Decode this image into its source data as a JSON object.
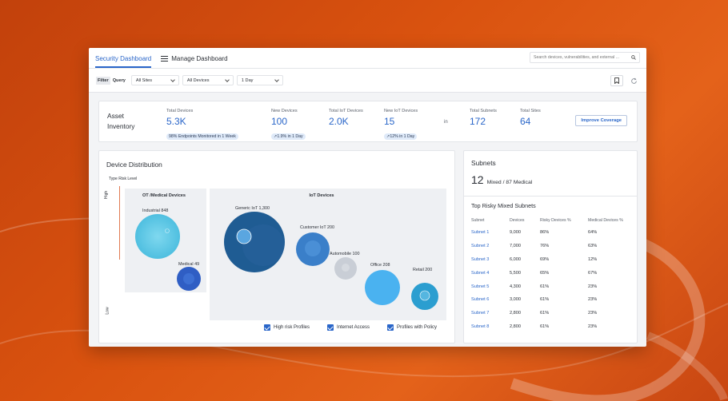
{
  "colors": {
    "accent": "#2a66c9",
    "background": "#d9520f"
  },
  "header": {
    "tabs": [
      {
        "label": "Security Dashboard",
        "active": true
      },
      {
        "label": "Manage Dashboard",
        "icon": "menu-icon"
      }
    ],
    "search_placeholder": "Search devices, vulnerabilities, and external ..."
  },
  "filterbar": {
    "filter_label": "Filter",
    "query_label": "Query",
    "sites": "All Sites",
    "devices": "All Devices",
    "period": "1 Day"
  },
  "inventory": {
    "title": "Asset Inventory",
    "stats": [
      {
        "label": "Total Devices",
        "value": "5.3K",
        "note": "98% Endpoints Monitored in 1 Week"
      },
      {
        "label": "New Devices",
        "value": "100",
        "note": "↗1.9% in 1 Day"
      },
      {
        "label": "Total IoT Devices",
        "value": "2.0K"
      },
      {
        "label": "New IoT Devices",
        "value": "15",
        "note": "↗12% in 1 Day"
      },
      {
        "label": "Total Subnets",
        "value": "172"
      },
      {
        "label": "Total Sites",
        "value": "64"
      }
    ],
    "in_word": "in",
    "button": "Improve Coverage"
  },
  "distribution": {
    "title": "Device Distribution",
    "axis_title": "Type Risk Level",
    "high": "High",
    "low": "Low",
    "groups": [
      {
        "title": "OT /Medical Devices",
        "bubbles": [
          {
            "label": "Industrial 848",
            "color": "#5ec9e6"
          },
          {
            "label": "Medical 49",
            "color": "#2f5ec4"
          }
        ]
      },
      {
        "title": "IoT Devices",
        "bubbles": [
          {
            "label": "Generic IoT 1,300",
            "color": "#1f5c93"
          },
          {
            "label": "Customer IoT 200",
            "color": "#3a7fc9"
          },
          {
            "label": "Automobile 100",
            "color": "#c9ced6"
          },
          {
            "label": "Office 208",
            "color": "#4ab2f0"
          },
          {
            "label": "Retail 200",
            "color": "#2b9ed0"
          }
        ]
      }
    ],
    "legend": [
      "High risk Profiles",
      "Internet Access",
      "Profiles with Policy"
    ]
  },
  "subnets": {
    "title": "Subnets",
    "count": "12",
    "breakdown": "Mixed / 87 Medical",
    "risky_title": "Top Risky Mixed Subnets",
    "columns": [
      "Subnet",
      "Devices",
      "Risky Devices %",
      "Medical Devices %"
    ],
    "rows": [
      [
        "Subnet 1",
        "9,000",
        "86%",
        "64%"
      ],
      [
        "Subnet 2",
        "7,000",
        "76%",
        "63%"
      ],
      [
        "Subnet 3",
        "6,000",
        "69%",
        "12%"
      ],
      [
        "Subnet 4",
        "5,500",
        "65%",
        "67%"
      ],
      [
        "Subnet 5",
        "4,300",
        "61%",
        "23%"
      ],
      [
        "Subnet 6",
        "3,000",
        "61%",
        "23%"
      ],
      [
        "Subnet 7",
        "2,800",
        "61%",
        "23%"
      ],
      [
        "Subnet 8",
        "2,800",
        "61%",
        "23%"
      ]
    ]
  }
}
